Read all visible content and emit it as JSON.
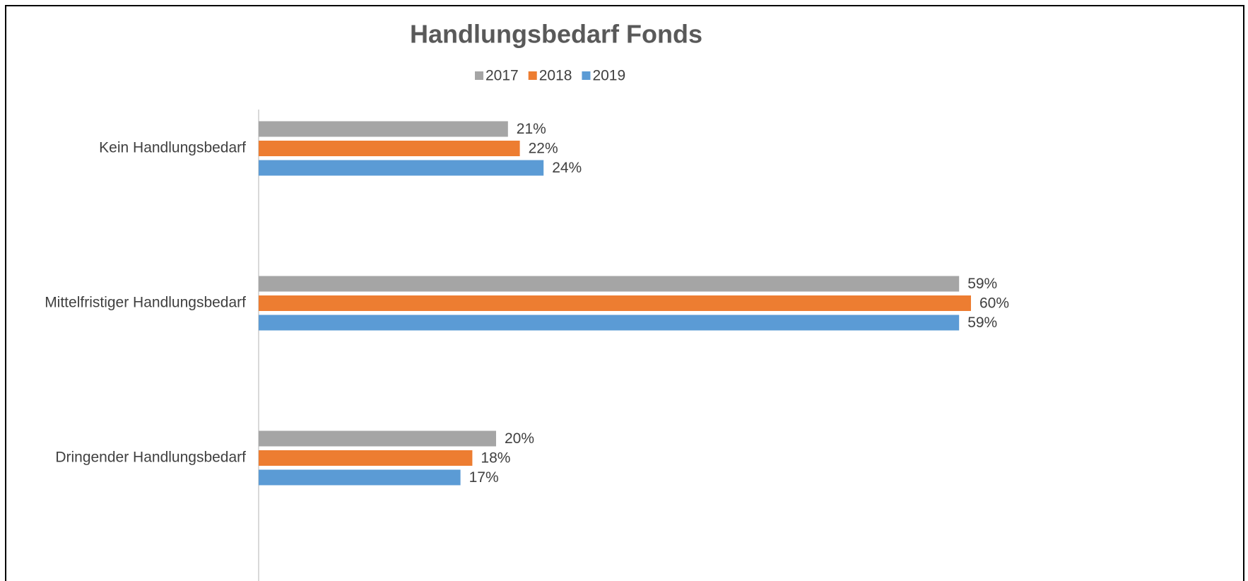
{
  "chart_data": {
    "type": "barh",
    "title": "Handlungsbedarf Fonds",
    "categories": [
      "Kein Handlungsbedarf",
      "Mittelfristiger Handlungsbedarf",
      "Dringender Handlungsbedarf"
    ],
    "series": [
      {
        "name": "2017",
        "color": "#a5a5a5",
        "values": [
          21,
          59,
          20
        ],
        "value_labels": [
          "21%",
          "59%",
          "20%"
        ]
      },
      {
        "name": "2018",
        "color": "#ed7d31",
        "values": [
          22,
          60,
          18
        ],
        "value_labels": [
          "22%",
          "60%",
          "18%"
        ]
      },
      {
        "name": "2019",
        "color": "#5b9bd5",
        "values": [
          24,
          59,
          17
        ],
        "value_labels": [
          "24%",
          "59%",
          "17%"
        ]
      }
    ],
    "xlim": [
      0,
      60
    ],
    "legend": "top"
  }
}
